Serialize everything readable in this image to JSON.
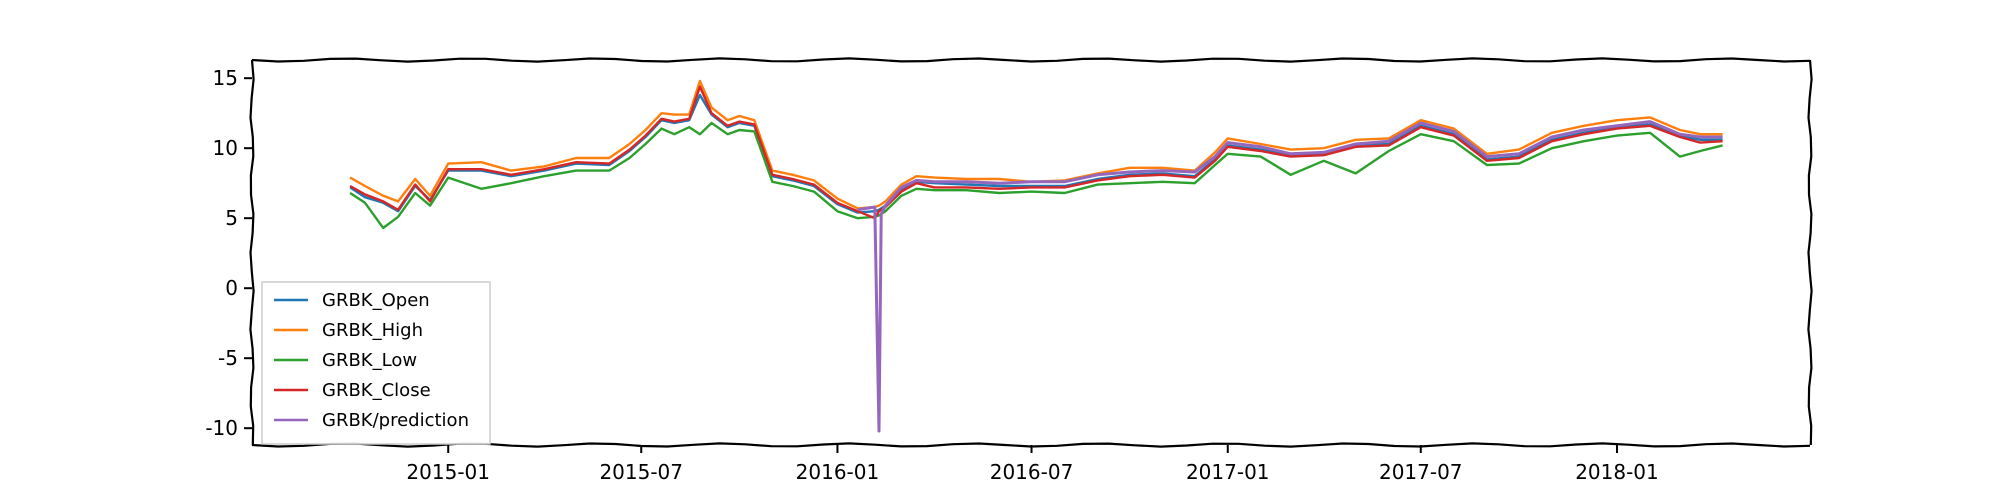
{
  "chart_data": {
    "type": "line",
    "title": "",
    "xlabel": "",
    "ylabel": "",
    "x_ticks": [
      "2015-01",
      "2015-07",
      "2016-01",
      "2016-07",
      "2017-01",
      "2017-07",
      "2018-01"
    ],
    "y_ticks": [
      15,
      10,
      5,
      0,
      -5,
      -10
    ],
    "ylim": [
      -11.2,
      16.3
    ],
    "xlim": [
      "2014-07-01",
      "2018-07-01"
    ],
    "grid": false,
    "legend_position": "lower-left",
    "x": [
      "2014-10-01",
      "2014-10-15",
      "2014-11-01",
      "2014-11-15",
      "2014-12-01",
      "2014-12-15",
      "2015-01-01",
      "2015-02-01",
      "2015-03-01",
      "2015-04-01",
      "2015-05-01",
      "2015-06-01",
      "2015-06-20",
      "2015-07-05",
      "2015-07-20",
      "2015-08-01",
      "2015-08-15",
      "2015-08-25",
      "2015-09-05",
      "2015-09-20",
      "2015-10-01",
      "2015-10-15",
      "2015-11-01",
      "2015-11-20",
      "2015-12-10",
      "2016-01-01",
      "2016-01-20",
      "2016-02-05",
      "2016-02-09",
      "2016-02-11",
      "2016-02-15",
      "2016-03-01",
      "2016-03-15",
      "2016-04-01",
      "2016-05-01",
      "2016-06-01",
      "2016-07-01",
      "2016-08-01",
      "2016-09-01",
      "2016-10-01",
      "2016-11-01",
      "2016-12-01",
      "2016-12-20",
      "2017-01-01",
      "2017-02-01",
      "2017-03-01",
      "2017-04-01",
      "2017-05-01",
      "2017-06-01",
      "2017-07-01",
      "2017-08-01",
      "2017-09-01",
      "2017-10-01",
      "2017-11-01",
      "2017-12-01",
      "2018-01-01",
      "2018-02-01",
      "2018-03-01",
      "2018-03-20",
      "2018-04-10"
    ],
    "series": [
      {
        "name": "GRBK_Open",
        "color": "#1f77b4",
        "values": [
          7.2,
          6.5,
          6.1,
          5.5,
          7.3,
          6.3,
          8.4,
          8.4,
          8.0,
          8.4,
          8.9,
          8.8,
          9.8,
          10.8,
          12.0,
          11.8,
          12.0,
          13.8,
          12.4,
          11.5,
          11.8,
          11.6,
          8.0,
          7.7,
          7.3,
          6.0,
          5.4,
          5.5,
          5.6,
          5.7,
          5.9,
          7.0,
          7.6,
          7.5,
          7.4,
          7.3,
          7.3,
          7.3,
          7.8,
          8.1,
          8.2,
          8.0,
          9.2,
          10.2,
          9.9,
          9.5,
          9.6,
          10.2,
          10.3,
          11.6,
          11.0,
          9.2,
          9.4,
          10.6,
          11.1,
          11.5,
          11.7,
          10.9,
          10.6,
          10.6
        ]
      },
      {
        "name": "GRBK_High",
        "color": "#ff7f0e",
        "values": [
          7.9,
          7.3,
          6.6,
          6.2,
          7.8,
          6.6,
          8.9,
          9.0,
          8.4,
          8.7,
          9.3,
          9.3,
          10.3,
          11.3,
          12.5,
          12.4,
          12.4,
          14.8,
          12.9,
          12.0,
          12.3,
          12.0,
          8.4,
          8.1,
          7.7,
          6.4,
          5.7,
          5.8,
          5.9,
          6.0,
          6.2,
          7.4,
          8.0,
          7.9,
          7.8,
          7.8,
          7.6,
          7.7,
          8.2,
          8.6,
          8.6,
          8.4,
          9.7,
          10.7,
          10.3,
          9.9,
          10.0,
          10.6,
          10.7,
          12.0,
          11.4,
          9.6,
          9.9,
          11.1,
          11.6,
          12.0,
          12.2,
          11.3,
          11.0,
          11.0
        ]
      },
      {
        "name": "GRBK_Low",
        "color": "#2ca02c",
        "values": [
          6.8,
          6.1,
          4.3,
          5.1,
          6.8,
          5.9,
          7.9,
          7.1,
          7.5,
          8.0,
          8.4,
          8.4,
          9.3,
          10.3,
          11.4,
          11.0,
          11.5,
          11.0,
          11.8,
          11.0,
          11.3,
          11.2,
          7.6,
          7.3,
          6.9,
          5.5,
          5.0,
          5.1,
          5.2,
          5.3,
          5.5,
          6.6,
          7.1,
          7.0,
          7.0,
          6.8,
          6.9,
          6.8,
          7.4,
          7.5,
          7.6,
          7.5,
          8.8,
          9.6,
          9.4,
          8.1,
          9.1,
          8.2,
          9.8,
          11.0,
          10.5,
          8.8,
          8.9,
          10.0,
          10.5,
          10.9,
          11.1,
          9.4,
          9.8,
          10.2
        ]
      },
      {
        "name": "GRBK_Close",
        "color": "#d62728",
        "values": [
          7.3,
          6.7,
          6.2,
          5.6,
          7.4,
          6.2,
          8.5,
          8.5,
          8.1,
          8.5,
          9.0,
          8.9,
          9.9,
          10.9,
          12.1,
          11.9,
          12.1,
          14.4,
          12.5,
          11.6,
          11.9,
          11.7,
          8.1,
          7.8,
          7.4,
          6.1,
          5.5,
          5.0,
          5.5,
          5.6,
          5.8,
          6.9,
          7.5,
          7.2,
          7.2,
          7.1,
          7.2,
          7.2,
          7.7,
          8.0,
          8.1,
          7.9,
          9.1,
          10.1,
          9.8,
          9.4,
          9.5,
          10.1,
          10.2,
          11.5,
          10.9,
          9.1,
          9.3,
          10.5,
          11.0,
          11.4,
          11.6,
          10.8,
          10.4,
          10.5
        ]
      },
      {
        "name": "GRBK/prediction",
        "color": "#9467bd",
        "values": [
          null,
          null,
          null,
          null,
          null,
          null,
          null,
          null,
          null,
          null,
          null,
          null,
          null,
          null,
          null,
          null,
          null,
          null,
          null,
          null,
          null,
          null,
          null,
          null,
          null,
          null,
          5.6,
          5.8,
          -10.2,
          5.3,
          5.9,
          7.2,
          7.7,
          7.6,
          7.6,
          7.5,
          7.6,
          7.6,
          8.1,
          8.3,
          8.4,
          8.3,
          9.4,
          10.4,
          10.1,
          9.6,
          9.7,
          10.3,
          10.5,
          11.8,
          11.2,
          9.4,
          9.6,
          10.8,
          11.3,
          11.6,
          11.9,
          11.0,
          10.8,
          10.8
        ]
      }
    ]
  }
}
